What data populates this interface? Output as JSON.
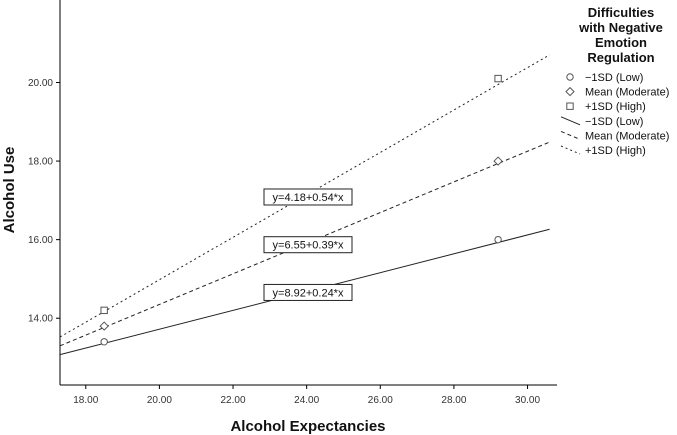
{
  "chart_data": {
    "type": "line",
    "xlabel": "Alcohol Expectancies",
    "ylabel": "Alcohol Use",
    "xlim": [
      17.3,
      30.8
    ],
    "ylim": [
      12.3,
      22.1
    ],
    "x_ticks": [
      "18.00",
      "20.00",
      "22.00",
      "24.00",
      "26.00",
      "28.00",
      "30.00"
    ],
    "y_ticks": [
      "14.00",
      "16.00",
      "18.00",
      "20.00"
    ],
    "grid": false,
    "legend": {
      "title": [
        "Difficulties",
        "with Negative",
        "Emotion",
        "Regulation"
      ],
      "position": "right",
      "entries": [
        {
          "label": "−1SD (Low)",
          "symbol": "circle"
        },
        {
          "label": "Mean (Moderate)",
          "symbol": "diamond"
        },
        {
          "label": "+1SD (High)",
          "symbol": "square"
        },
        {
          "label": "−1SD (Low)",
          "symbol": "solid-line"
        },
        {
          "label": "Mean (Moderate)",
          "symbol": "dashed-line"
        },
        {
          "label": "+1SD (High)",
          "symbol": "dotted-line"
        }
      ]
    },
    "series": [
      {
        "name": "−1SD (Low)",
        "marker": "circle",
        "line_style": "solid",
        "intercept": 8.92,
        "slope": 0.24,
        "equation": "y=8.92+0.24*x",
        "equation_anchor_x": 23.9,
        "line_range": [
          17.3,
          30.6
        ],
        "points": [
          [
            18.5,
            13.4
          ],
          [
            29.2,
            16.0
          ]
        ]
      },
      {
        "name": "Mean (Moderate)",
        "marker": "diamond",
        "line_style": "dashed",
        "intercept": 6.55,
        "slope": 0.39,
        "equation": "y=6.55+0.39*x",
        "equation_anchor_x": 23.9,
        "line_range": [
          17.3,
          30.6
        ],
        "points": [
          [
            18.5,
            13.8
          ],
          [
            29.2,
            18.0
          ]
        ]
      },
      {
        "name": "+1SD (High)",
        "marker": "square",
        "line_style": "dotted",
        "intercept": 4.18,
        "slope": 0.54,
        "equation": "y=4.18+0.54*x",
        "equation_anchor_x": 23.9,
        "line_range": [
          17.3,
          30.6
        ],
        "points": [
          [
            18.5,
            14.2
          ],
          [
            29.2,
            20.1
          ]
        ]
      }
    ]
  }
}
